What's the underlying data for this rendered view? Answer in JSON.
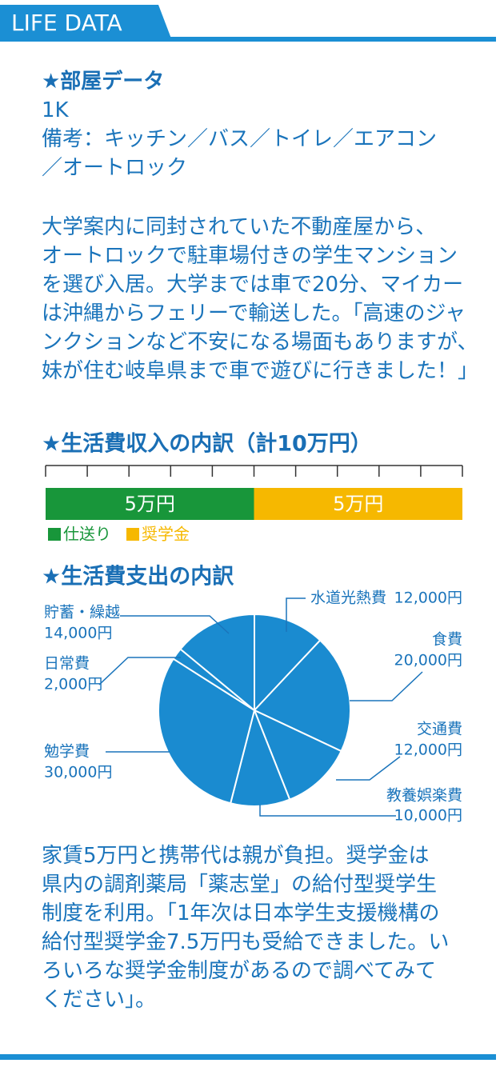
{
  "header": {
    "title": "LIFE DATA"
  },
  "room": {
    "heading": "★部屋データ",
    "lines": [
      "1K",
      "備考：キッチン／バス／トイレ／エアコン",
      "／オートロック"
    ]
  },
  "paragraphs": [
    {
      "lines": [
        "大学案内に同封されていた不動産屋から、",
        "オートロックで駐車場付きの学生マンション",
        "を選び入居。大学までは車で20分、マイカー",
        "は沖縄からフェリーで輸送した。「高速のジャ",
        "ンクションなど不安になる場面もありますが、",
        "妹が住む岐阜県まで車で遊びに行きました！」"
      ]
    },
    {
      "lines": [
        "家賃5万円と携帯代は親が負担。奨学金は",
        "県内の調剤薬局「薬志堂」の給付型奨学生",
        "制度を利用。「1年次は日本学生支援機構の",
        "給付型奨学金7.5万円も受給できました。い",
        "ろいろな奨学金制度があるので調べてみて",
        "ください」。"
      ]
    }
  ],
  "chart_data": [
    {
      "type": "stacked-bar",
      "title": "★生活費収入の内訳（計10万円）",
      "xlim": [
        0,
        10
      ],
      "xticks": [
        0,
        1,
        2,
        3,
        4,
        5,
        6,
        7,
        8,
        9,
        10
      ],
      "series": [
        {
          "name": "仕送り",
          "color": "#18963a",
          "values": [
            5
          ],
          "value_labels": [
            "5万円"
          ]
        },
        {
          "name": "奨学金",
          "color": "#f6b800",
          "values": [
            5
          ],
          "value_labels": [
            "5万円"
          ]
        }
      ]
    },
    {
      "type": "pie",
      "title": "★生活費支出の内訳",
      "color": "#1a8bd0",
      "categories": [
        "水道光熱費",
        "食費",
        "交通費",
        "教養娯楽費",
        "勉学費",
        "日常費",
        "貯蓄・繰越"
      ],
      "values": [
        12000,
        20000,
        12000,
        10000,
        30000,
        2000,
        14000
      ],
      "value_labels": [
        "12,000円",
        "20,000円",
        "12,000円",
        "10,000円",
        "30,000円",
        "2,000円",
        "14,000円"
      ]
    }
  ]
}
